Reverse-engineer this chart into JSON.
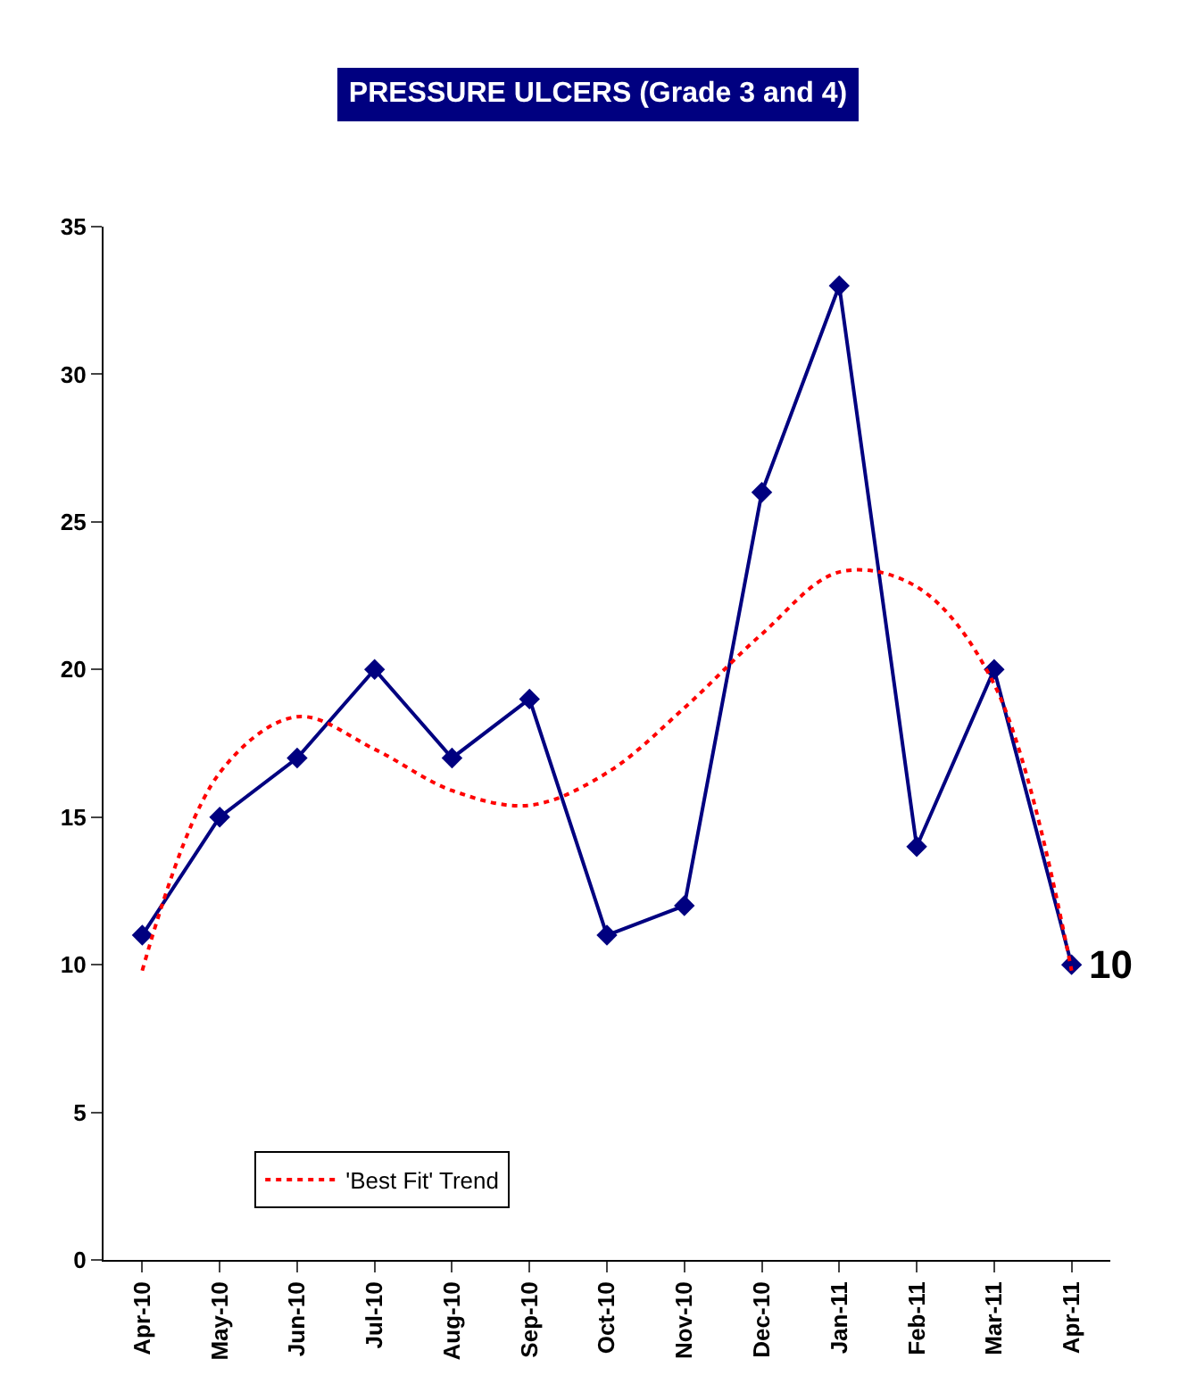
{
  "chart_data": {
    "type": "line",
    "title": "PRESSURE ULCERS (Grade 3 and 4)",
    "categories": [
      "Apr-10",
      "May-10",
      "Jun-10",
      "Jul-10",
      "Aug-10",
      "Sep-10",
      "Oct-10",
      "Nov-10",
      "Dec-10",
      "Jan-11",
      "Feb-11",
      "Mar-11",
      "Apr-11"
    ],
    "series": [
      {
        "color": "#000080",
        "values": [
          11,
          15,
          17,
          20,
          17,
          19,
          11,
          12,
          26,
          33,
          14,
          20,
          10
        ],
        "marker": "diamond",
        "line_style": "solid"
      },
      {
        "name": "'Best Fit' Trend",
        "type": "line",
        "color": "#ff0000",
        "values": [
          9.8,
          16.5,
          18.4,
          17.3,
          15.9,
          15.4,
          16.5,
          18.7,
          21.2,
          23.3,
          22.8,
          19.5,
          9.8
        ],
        "marker": "none",
        "line_style": "dotted"
      }
    ],
    "ylim": [
      0,
      35
    ],
    "yticks": [
      0,
      5,
      10,
      15,
      20,
      25,
      30,
      35
    ],
    "grid": false,
    "legend": "bottom left",
    "annotations": [
      {
        "text": "10",
        "x": "Apr-11",
        "y": 10
      }
    ]
  }
}
